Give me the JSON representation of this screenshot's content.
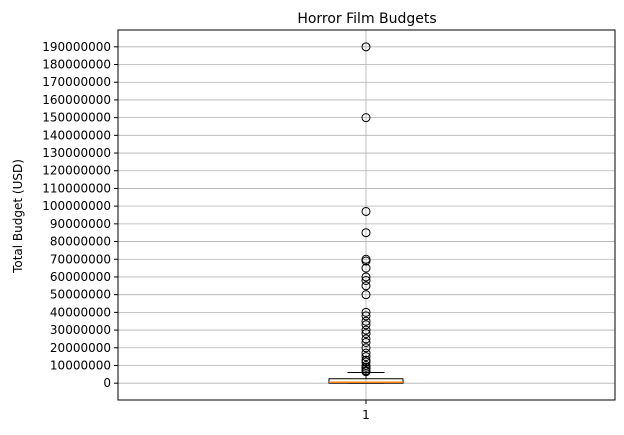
{
  "chart_data": {
    "type": "boxplot",
    "title": "Horror Film Budgets",
    "xlabel": "",
    "ylabel": "Total Budget (USD)",
    "categories": [
      "1"
    ],
    "ylim": [
      -9500000,
      199500000
    ],
    "yticks": [
      0,
      10000000,
      20000000,
      30000000,
      40000000,
      50000000,
      60000000,
      70000000,
      80000000,
      90000000,
      100000000,
      110000000,
      120000000,
      130000000,
      140000000,
      150000000,
      160000000,
      170000000,
      180000000,
      190000000
    ],
    "grid": true,
    "box": {
      "q1": 0,
      "median": 500000,
      "q3": 2500000,
      "whisker_low": 0,
      "whisker_high": 6000000
    },
    "outliers": [
      190000000,
      150000000,
      97000000,
      85000000,
      70000000,
      69000000,
      65000000,
      60000000,
      58000000,
      55000000,
      50000000,
      40000000,
      38000000,
      35000000,
      33000000,
      30000000,
      28000000,
      25000000,
      23000000,
      20000000,
      17000000,
      15000000,
      13000000,
      12000000,
      10000000,
      9000000,
      8000000,
      7000000,
      6500000
    ],
    "colors": {
      "box": "#000000",
      "median": "#ff7f0e",
      "grid": "#b0b0b0"
    }
  }
}
